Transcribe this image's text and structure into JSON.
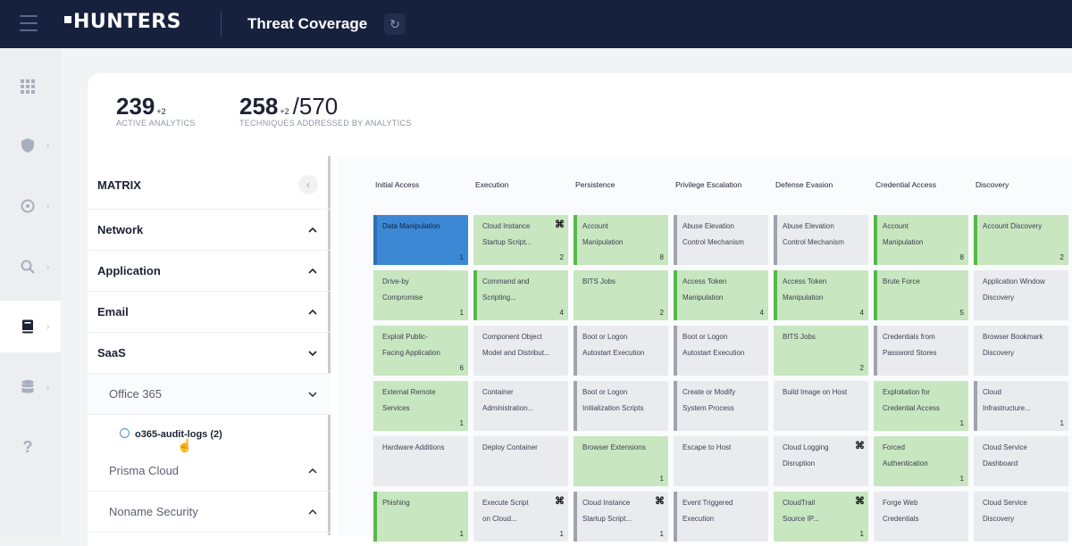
{
  "header": {
    "logo": "HUNTERS",
    "title": "Threat Coverage",
    "refresh_icon": "refresh-icon"
  },
  "rail": {
    "items": [
      {
        "name": "grid-icon"
      },
      {
        "name": "shield-icon"
      },
      {
        "name": "target-icon"
      },
      {
        "name": "search-icon"
      },
      {
        "name": "book-icon",
        "active": true
      },
      {
        "name": "database-icon"
      },
      {
        "name": "help-icon",
        "glyph": "?"
      }
    ]
  },
  "stats": {
    "active": {
      "value": "239",
      "delta": "+2",
      "label": "ACTIVE ANALYTICS"
    },
    "techniques": {
      "value": "258",
      "delta": "+2",
      "total": "/570",
      "label": "TECHNIQUES ADDRESSED BY ANALYTICS"
    }
  },
  "sidebar": {
    "matrix_label": "MATRIX",
    "sections": [
      {
        "label": "Network",
        "chevron": "^"
      },
      {
        "label": "Application",
        "chevron": "^"
      },
      {
        "label": "Email",
        "chevron": "^"
      },
      {
        "label": "SaaS",
        "chevron": "v"
      },
      {
        "label": "Office 365",
        "chevron": "v",
        "sub": true
      },
      {
        "label": "Prisma Cloud",
        "chevron": "^",
        "sub": true
      },
      {
        "label": "Noname Security",
        "chevron": "^",
        "sub": true
      }
    ],
    "leaf": "o365-audit-logs (2)"
  },
  "matrix": {
    "columns": [
      "Initial Access",
      "Execution",
      "Persistence",
      "Privilege Escalation",
      "Defense Evasion",
      "Credential Access",
      "Discovery"
    ],
    "rows": [
      [
        {
          "t1": "Data Manipulation",
          "t2": "",
          "c": "1",
          "s": "blue",
          "bar": "b"
        },
        {
          "t1": "Cloud Instance",
          "t2": "Startup Script...",
          "c": "2",
          "s": "green",
          "bar": "",
          "icon": true
        },
        {
          "t1": "Account",
          "t2": "Manipulation",
          "c": "8",
          "s": "green",
          "bar": "g"
        },
        {
          "t1": "Abuse Elevation",
          "t2": "Control Mechanism",
          "c": "",
          "s": "grey",
          "bar": "gr"
        },
        {
          "t1": "Abuse Elevation",
          "t2": "Control Mechanism",
          "c": "",
          "s": "grey",
          "bar": "gr"
        },
        {
          "t1": "Account",
          "t2": "Manipulation",
          "c": "8",
          "s": "green",
          "bar": "g"
        },
        {
          "t1": "Account Discovery",
          "t2": "",
          "c": "2",
          "s": "green",
          "bar": "g"
        }
      ],
      [
        {
          "t1": "Drive-by",
          "t2": "Compromise",
          "c": "1",
          "s": "green",
          "bar": ""
        },
        {
          "t1": "Command and",
          "t2": "Scripting...",
          "c": "4",
          "s": "green",
          "bar": "g"
        },
        {
          "t1": "BITS Jobs",
          "t2": "",
          "c": "2",
          "s": "green",
          "bar": ""
        },
        {
          "t1": "Access Token",
          "t2": "Manipulation",
          "c": "4",
          "s": "green",
          "bar": "g"
        },
        {
          "t1": "Access Token",
          "t2": "Manipulation",
          "c": "4",
          "s": "green",
          "bar": "g"
        },
        {
          "t1": "Brute Force",
          "t2": "",
          "c": "5",
          "s": "green",
          "bar": "g"
        },
        {
          "t1": "Application Window",
          "t2": "Discovery",
          "c": "",
          "s": "grey",
          "bar": ""
        }
      ],
      [
        {
          "t1": "Exploit Public-",
          "t2": "Facing Application",
          "c": "6",
          "s": "green",
          "bar": ""
        },
        {
          "t1": "Component Object",
          "t2": "Model and Distribut...",
          "c": "",
          "s": "grey",
          "bar": ""
        },
        {
          "t1": "Boot or Logon",
          "t2": "Autostart Execution",
          "c": "",
          "s": "grey",
          "bar": "gr"
        },
        {
          "t1": "Boot or Logon",
          "t2": "Autostart Execution",
          "c": "",
          "s": "grey",
          "bar": "gr"
        },
        {
          "t1": "BITS Jobs",
          "t2": "",
          "c": "2",
          "s": "green",
          "bar": ""
        },
        {
          "t1": "Credentials from",
          "t2": "Password Stores",
          "c": "",
          "s": "grey",
          "bar": "gr"
        },
        {
          "t1": "Browser Bookmark",
          "t2": "Discovery",
          "c": "",
          "s": "grey",
          "bar": ""
        }
      ],
      [
        {
          "t1": "External Remote",
          "t2": "Services",
          "c": "1",
          "s": "green",
          "bar": ""
        },
        {
          "t1": "Container",
          "t2": "Administration...",
          "c": "",
          "s": "grey",
          "bar": ""
        },
        {
          "t1": "Boot or Logon",
          "t2": "Initialization Scripts",
          "c": "",
          "s": "grey",
          "bar": "gr"
        },
        {
          "t1": "Create or Modify",
          "t2": "System Process",
          "c": "",
          "s": "grey",
          "bar": "gr"
        },
        {
          "t1": "Build Image on Host",
          "t2": "",
          "c": "",
          "s": "grey",
          "bar": ""
        },
        {
          "t1": "Exploitation for",
          "t2": "Credential Access",
          "c": "1",
          "s": "green",
          "bar": ""
        },
        {
          "t1": "Cloud",
          "t2": "Infrastructure...",
          "c": "1",
          "s": "grey",
          "bar": "gr"
        }
      ],
      [
        {
          "t1": "Hardware Additions",
          "t2": "",
          "c": "",
          "s": "grey",
          "bar": ""
        },
        {
          "t1": "Deploy Container",
          "t2": "",
          "c": "",
          "s": "grey",
          "bar": ""
        },
        {
          "t1": "Browser Extensions",
          "t2": "",
          "c": "1",
          "s": "green",
          "bar": ""
        },
        {
          "t1": "Escape to Host",
          "t2": "",
          "c": "",
          "s": "grey",
          "bar": ""
        },
        {
          "t1": "Cloud Logging",
          "t2": "Disruption",
          "c": "",
          "s": "grey",
          "bar": "",
          "icon": true
        },
        {
          "t1": "Forced",
          "t2": "Authentication",
          "c": "1",
          "s": "green",
          "bar": ""
        },
        {
          "t1": "Cloud Service",
          "t2": "Dashboard",
          "c": "",
          "s": "grey",
          "bar": ""
        }
      ],
      [
        {
          "t1": "Phishing",
          "t2": "",
          "c": "1",
          "s": "green",
          "bar": "g"
        },
        {
          "t1": "Execute Script",
          "t2": "on Cloud...",
          "c": "1",
          "s": "grey",
          "bar": "",
          "icon": true
        },
        {
          "t1": "Cloud Instance",
          "t2": "Startup Script...",
          "c": "1",
          "s": "grey",
          "bar": "gr",
          "icon": true
        },
        {
          "t1": "Event Triggered",
          "t2": "Execution",
          "c": "",
          "s": "grey",
          "bar": "gr"
        },
        {
          "t1": "CloudTrail",
          "t2": "Source IP...",
          "c": "1",
          "s": "green",
          "bar": "",
          "icon": true
        },
        {
          "t1": "Forge Web",
          "t2": "Credentials",
          "c": "",
          "s": "grey",
          "bar": ""
        },
        {
          "t1": "Cloud Service",
          "t2": "Discovery",
          "c": "",
          "s": "grey",
          "bar": ""
        }
      ]
    ]
  },
  "colors": {
    "topbar": "#16213e",
    "covered": "#c8e6c0",
    "covered_bar": "#55b94a",
    "selected": "#3d88d4",
    "uncovered": "#eaebee"
  }
}
